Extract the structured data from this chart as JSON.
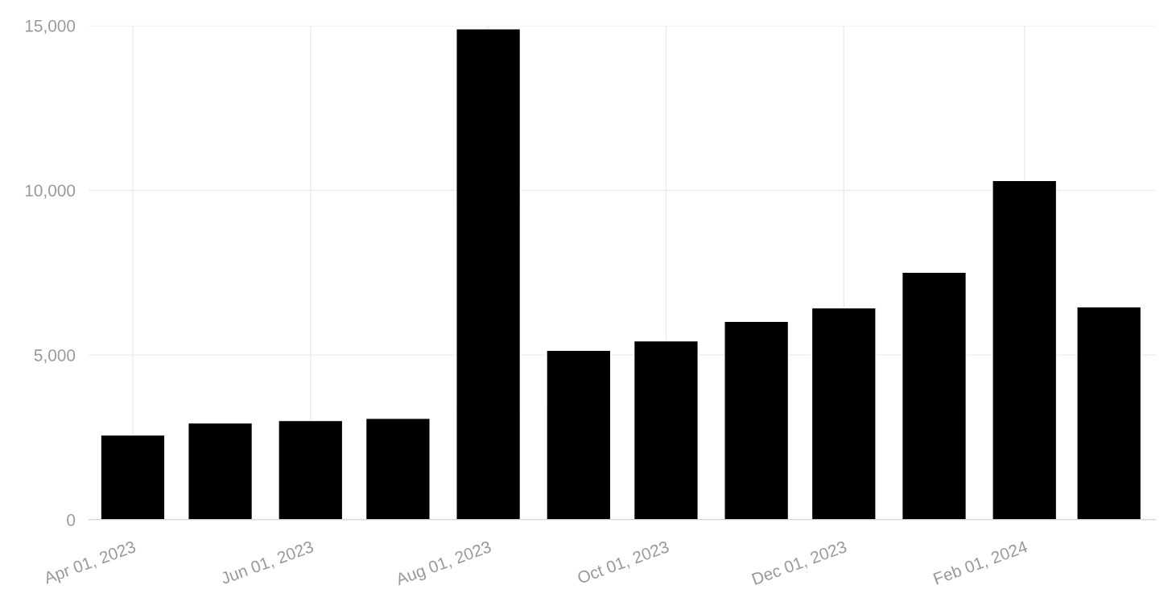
{
  "chart_data": {
    "type": "bar",
    "color": "#000000",
    "x": [
      "2023-04-01",
      "2023-05-01",
      "2023-06-01",
      "2023-07-01",
      "2023-08-01",
      "2023-09-01",
      "2023-10-01",
      "2023-11-01",
      "2023-12-01",
      "2024-01-01",
      "2024-02-01",
      "2024-03-01"
    ],
    "values": [
      2570,
      2940,
      3010,
      3080,
      14900,
      5140,
      5430,
      6020,
      6430,
      7510,
      10300,
      6460
    ],
    "xlim": [
      "2023-03-17",
      "2024-03-17"
    ],
    "xticks": [
      {
        "value": "2023-04-01",
        "label": "Apr 01, 2023"
      },
      {
        "value": "2023-06-01",
        "label": "Jun 01, 2023"
      },
      {
        "value": "2023-08-01",
        "label": "Aug 01, 2023"
      },
      {
        "value": "2023-10-01",
        "label": "Oct 01, 2023"
      },
      {
        "value": "2023-12-01",
        "label": "Dec 01, 2023"
      },
      {
        "value": "2024-02-01",
        "label": "Feb 01, 2024"
      }
    ],
    "ylim": [
      0,
      15000
    ],
    "yticks": [
      {
        "value": 0,
        "label": "0"
      },
      {
        "value": 5000,
        "label": "5,000"
      },
      {
        "value": 10000,
        "label": "10,000"
      },
      {
        "value": 15000,
        "label": "15,000"
      }
    ],
    "grid": true
  }
}
